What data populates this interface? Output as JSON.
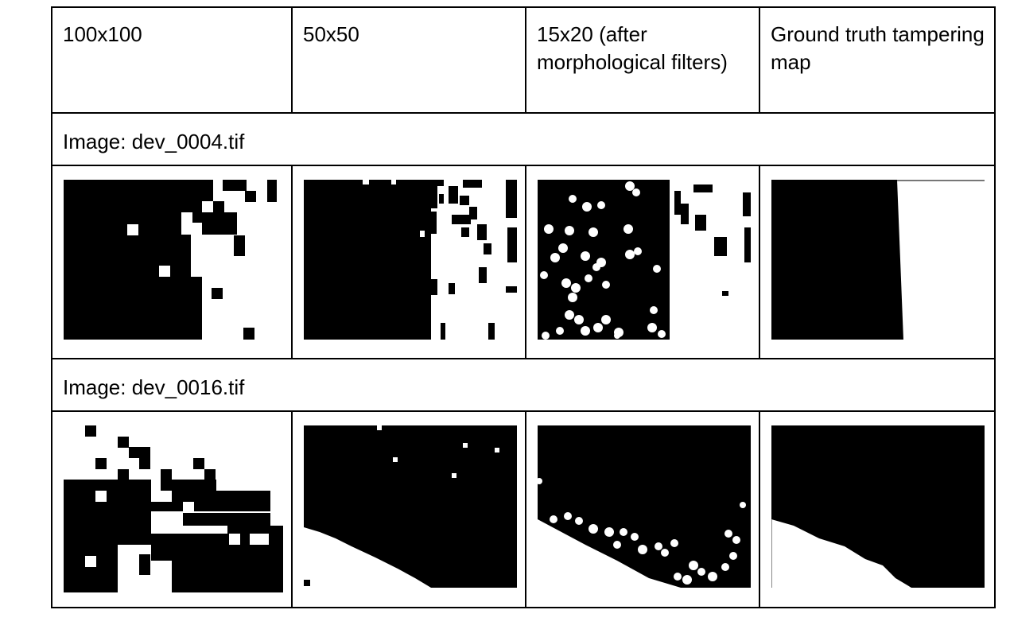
{
  "headers": [
    "100x100",
    "50x50",
    "15x20 (after morphological filters)",
    "Ground truth tampering map"
  ],
  "sections": [
    {
      "caption": "Image: dev_0004.tif",
      "panels": [
        "100x100 tampering map",
        "50x50 tampering map",
        "15x20 filtered tampering map",
        "ground truth tampering map"
      ]
    },
    {
      "caption": "Image: dev_0016.tif",
      "panels": [
        "100x100 tampering map",
        "50x50 tampering map",
        "15x20 filtered tampering map",
        "ground truth tampering map"
      ]
    }
  ],
  "colors": {
    "foreground": "#000000",
    "background": "#ffffff",
    "border": "#000000"
  }
}
